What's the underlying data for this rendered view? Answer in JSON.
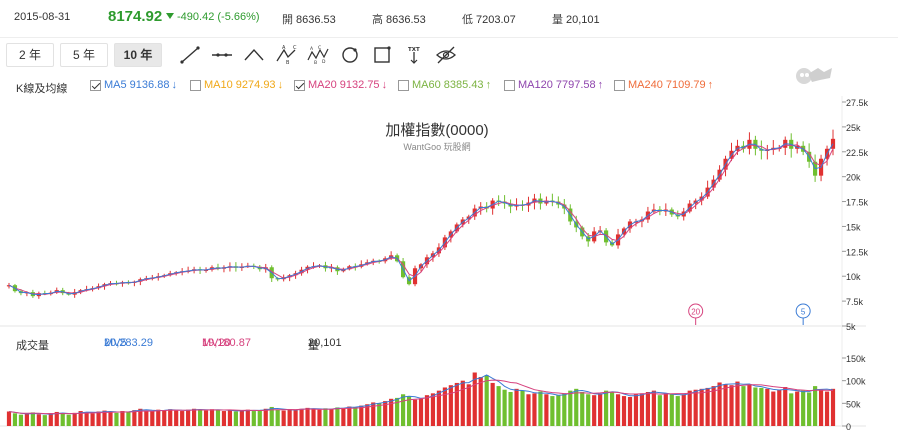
{
  "quote": {
    "date": "2015-08-31",
    "price": "8174.92",
    "change": "-490.42 (-5.66%)",
    "open_label": "開",
    "open": "8636.53",
    "high_label": "高",
    "high": "8636.53",
    "low_label": "低",
    "low": "7203.07",
    "volume_label": "量",
    "volume": "20,101"
  },
  "range_buttons": [
    "2 年",
    "5 年",
    "10 年"
  ],
  "active_range": "10 年",
  "tools": [
    "line-tool-icon",
    "horizontal-line-tool-icon",
    "triangle-tool-icon",
    "abc-pattern-tool-icon",
    "abcde-pattern-tool-icon",
    "circle-tool-icon",
    "rectangle-tool-icon",
    "text-tool-icon",
    "hide-drawings-icon"
  ],
  "ma_panel": {
    "title": "K線及均線",
    "items": [
      {
        "label": "MA5",
        "value": "9136.88",
        "arrow": "↓",
        "checked": true,
        "color": "#3a7bd5"
      },
      {
        "label": "MA10",
        "value": "9274.93",
        "arrow": "↓",
        "checked": false,
        "color": "#f0a818"
      },
      {
        "label": "MA20",
        "value": "9132.75",
        "arrow": "↓",
        "checked": true,
        "color": "#d6427e"
      },
      {
        "label": "MA60",
        "value": "8385.43",
        "arrow": "↑",
        "checked": false,
        "color": "#7cb342"
      },
      {
        "label": "MA120",
        "value": "7797.58",
        "arrow": "↑",
        "checked": false,
        "color": "#8e44ad"
      },
      {
        "label": "MA240",
        "value": "7109.79",
        "arrow": "↑",
        "checked": false,
        "color": "#ef6c3a"
      }
    ]
  },
  "volume_panel": {
    "title": "成交量",
    "mv5_label": "MV5",
    "mv5_value": "20,283.29",
    "mv5_arrow": "↓",
    "mv5_color": "#3a7bd5",
    "mv20_label": "MV20",
    "mv20_value": "19,180.87",
    "mv20_arrow": "↑",
    "mv20_color": "#d6427e",
    "vol_label": "量",
    "vol_value": "20,101",
    "vol_arrow": "↓"
  },
  "chart_data": {
    "type": "candlestick",
    "title": "加權指數(0000)",
    "subtitle": "WantGoo 玩股網",
    "price_ylim": [
      5000,
      27500
    ],
    "price_ticks": [
      "27.5k",
      "25k",
      "22.5k",
      "20k",
      "17.5k",
      "15k",
      "12.5k",
      "10k",
      "7.5k",
      "5k"
    ],
    "price_tick_values": [
      27500,
      25000,
      22500,
      20000,
      17500,
      15000,
      12500,
      10000,
      7500,
      5000
    ],
    "volume_ylim": [
      0,
      150000
    ],
    "volume_ticks": [
      "150k",
      "100k",
      "50k",
      "0"
    ],
    "volume_tick_values": [
      150000,
      100000,
      50000,
      0
    ],
    "up_color": "#e03131",
    "down_color": "#6fbf2f",
    "markers": [
      {
        "label": "20",
        "index": 115,
        "color": "#d6427e"
      },
      {
        "label": "5",
        "index": 133,
        "color": "#3a7bd5"
      }
    ],
    "monthly_closes": [
      9100,
      8500,
      8300,
      8400,
      8000,
      8300,
      8200,
      8350,
      8600,
      8300,
      8150,
      8400,
      8600,
      8700,
      8800,
      9000,
      9200,
      9300,
      9250,
      9400,
      9350,
      9450,
      9700,
      9800,
      9850,
      10000,
      10100,
      10300,
      10400,
      10500,
      10550,
      10700,
      10600,
      10650,
      10900,
      10750,
      10900,
      11000,
      10850,
      10950,
      11050,
      10950,
      10700,
      10900,
      9800,
      9700,
      9900,
      10100,
      10300,
      10650,
      10950,
      11000,
      11100,
      10800,
      10900,
      10500,
      10700,
      11000,
      10950,
      11200,
      11400,
      11550,
      11500,
      11800,
      12100,
      11500,
      9900,
      9200,
      10800,
      11200,
      11900,
      12300,
      12900,
      13900,
      14500,
      15200,
      15700,
      16000,
      16800,
      17000,
      16800,
      17600,
      17500,
      17300,
      17000,
      17200,
      17100,
      17400,
      17800,
      17300,
      17600,
      17500,
      17200,
      16800,
      15500,
      14900,
      14000,
      13500,
      14500,
      14600,
      13400,
      13100,
      14200,
      14800,
      15500,
      15500,
      15700,
      16500,
      16700,
      16500,
      16700,
      16200,
      16000,
      16500,
      17300,
      17600,
      18000,
      18900,
      19700,
      20700,
      21800,
      22600,
      23100,
      22800,
      23700,
      22800,
      22600,
      22700,
      22900,
      22900,
      23700,
      22800,
      23100,
      22500,
      21500,
      20100,
      21800,
      22800,
      23800
    ],
    "monthly_volumes": [
      32000,
      28000,
      25000,
      27000,
      30000,
      26000,
      24000,
      28000,
      31000,
      27000,
      25000,
      29000,
      33000,
      30000,
      28000,
      32000,
      34000,
      30000,
      29000,
      33000,
      31000,
      35000,
      38000,
      34000,
      32000,
      36000,
      35000,
      37000,
      34000,
      33000,
      36000,
      38000,
      35000,
      34000,
      37000,
      36000,
      33000,
      35000,
      32000,
      34000,
      36000,
      33000,
      35000,
      38000,
      42000,
      36000,
      34000,
      37000,
      35000,
      38000,
      40000,
      37000,
      36000,
      39000,
      37000,
      41000,
      40000,
      43000,
      42000,
      45000,
      48000,
      52000,
      50000,
      55000,
      60000,
      62000,
      70000,
      65000,
      58000,
      60000,
      68000,
      72000,
      78000,
      85000,
      90000,
      95000,
      100000,
      92000,
      118000,
      108000,
      112000,
      95000,
      88000,
      80000,
      75000,
      82000,
      78000,
      70000,
      72000,
      76000,
      70000,
      66000,
      68000,
      72000,
      78000,
      82000,
      75000,
      70000,
      68000,
      72000,
      78000,
      76000,
      70000,
      66000,
      64000,
      70000,
      72000,
      75000,
      78000,
      68000,
      72000,
      70000,
      66000,
      70000,
      78000,
      80000,
      82000,
      84000,
      88000,
      96000,
      92000,
      90000,
      98000,
      88000,
      92000,
      85000,
      84000,
      82000,
      76000,
      80000,
      86000,
      72000,
      76000,
      78000,
      74000,
      88000,
      80000,
      76000,
      82000
    ]
  }
}
